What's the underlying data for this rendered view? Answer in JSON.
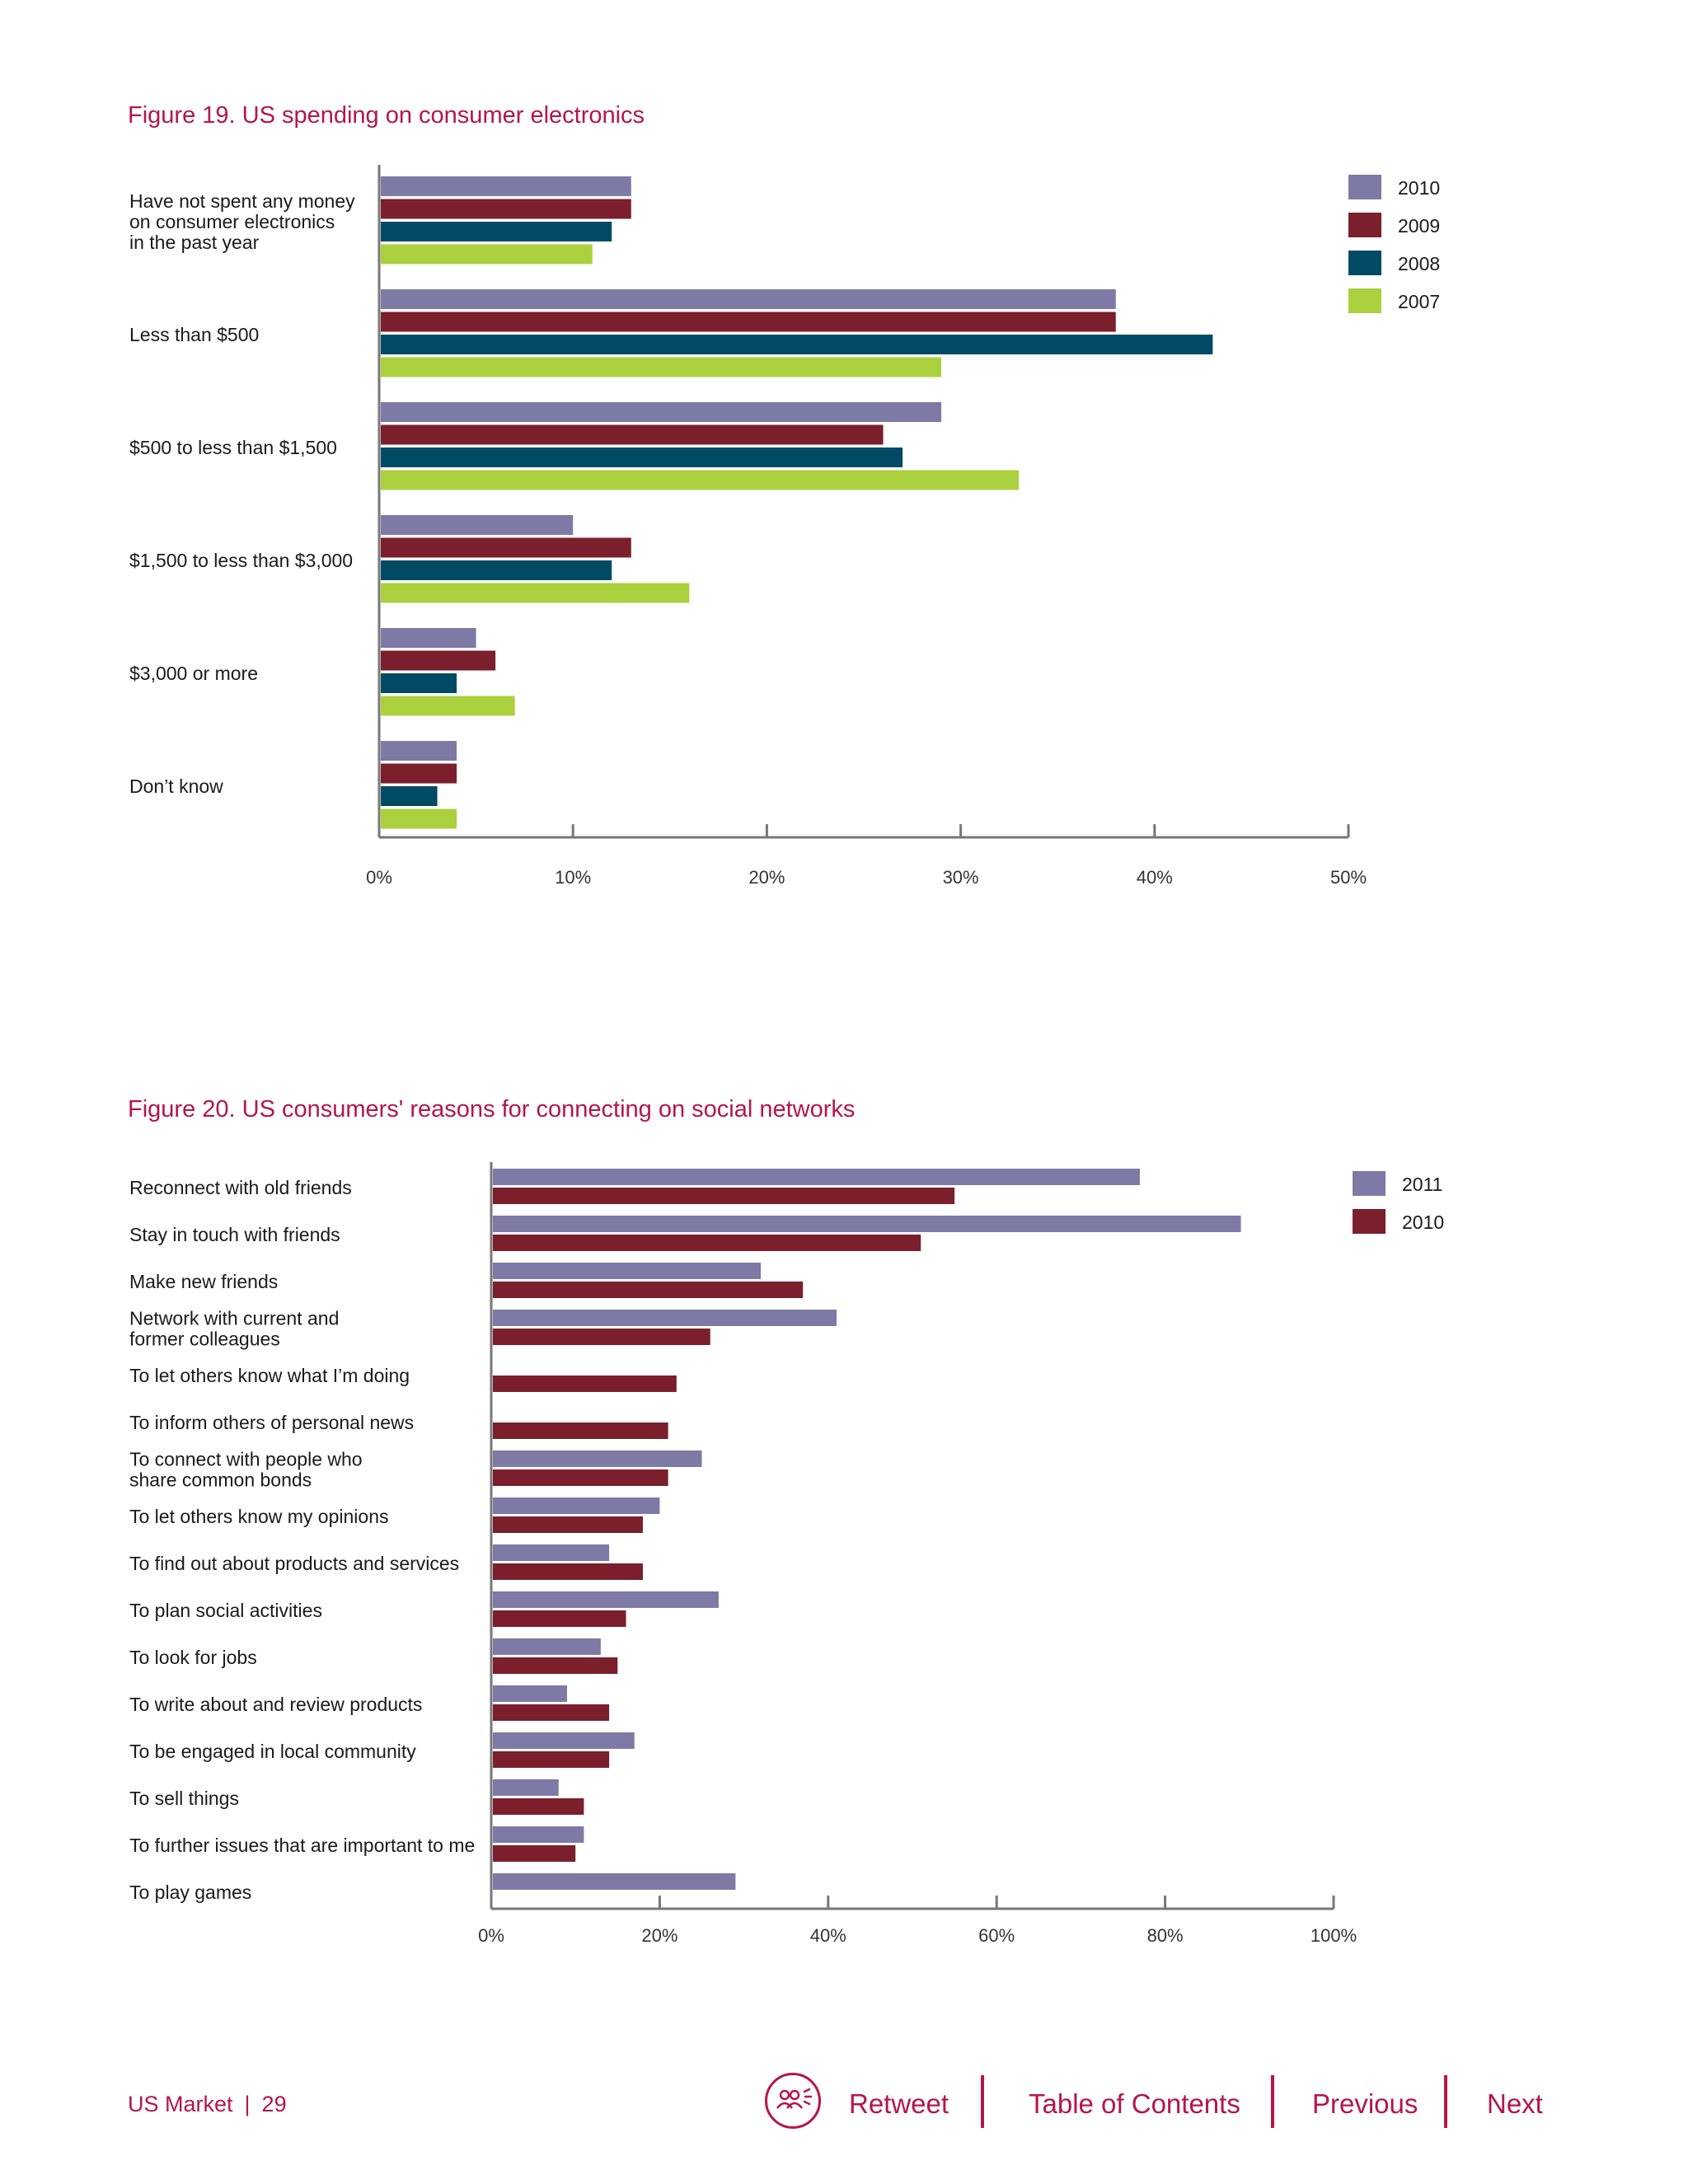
{
  "colors": {
    "title": "#b5154b",
    "axis": "#777777",
    "s2011": "#7e7aa6",
    "s2010": "#7e7aa6",
    "s2009": "#7a1f2b",
    "s2008": "#004b63",
    "s2007": "#abd03e",
    "s2010_fig20": "#7a1f2b"
  },
  "chart_data": [
    {
      "type": "bar",
      "orientation": "horizontal",
      "title": "Figure 19. US spending on consumer electronics",
      "categories": [
        [
          "Have not spent any money",
          "on consumer electronics",
          "in the past year"
        ],
        [
          "Less than $500"
        ],
        [
          "$500 to less than $1,500"
        ],
        [
          "$1,500 to less than $3,000"
        ],
        [
          "$3,000 or more"
        ],
        [
          "Don’t know"
        ]
      ],
      "series": [
        {
          "name": "2010",
          "color": "#7e7aa6",
          "values": [
            13,
            38,
            29,
            10,
            5,
            4
          ]
        },
        {
          "name": "2009",
          "color": "#7a1f2b",
          "values": [
            13,
            38,
            26,
            13,
            6,
            4
          ]
        },
        {
          "name": "2008",
          "color": "#004b63",
          "values": [
            12,
            43,
            27,
            12,
            4,
            3
          ]
        },
        {
          "name": "2007",
          "color": "#abd03e",
          "values": [
            11,
            29,
            33,
            16,
            7,
            4
          ]
        }
      ],
      "xlim": [
        0,
        50
      ],
      "xticks": [
        0,
        10,
        20,
        30,
        40,
        50
      ],
      "tick_labels": [
        "0%",
        "10%",
        "20%",
        "30%",
        "40%",
        "50%"
      ],
      "legend": "top-right",
      "grid": false
    },
    {
      "type": "bar",
      "orientation": "horizontal",
      "title": "Figure 20. US consumers' reasons for connecting on social networks",
      "categories": [
        [
          "Reconnect with old friends"
        ],
        [
          "Stay in touch with friends"
        ],
        [
          "Make new friends"
        ],
        [
          "Network with current and",
          "former colleagues"
        ],
        [
          "To let others know what I’m doing"
        ],
        [
          "To inform others of personal news"
        ],
        [
          "To connect with people who",
          "share common bonds"
        ],
        [
          "To let others know my opinions"
        ],
        [
          "To find out about products and services"
        ],
        [
          "To plan social activities"
        ],
        [
          "To look for jobs"
        ],
        [
          "To write about and review products"
        ],
        [
          "To be engaged in local community"
        ],
        [
          "To sell things"
        ],
        [
          "To further issues that are important to me"
        ],
        [
          "To play games"
        ]
      ],
      "series": [
        {
          "name": "2011",
          "color": "#7e7aa6",
          "values": [
            77,
            89,
            32,
            41,
            null,
            null,
            25,
            20,
            14,
            27,
            13,
            9,
            17,
            8,
            11,
            29
          ]
        },
        {
          "name": "2010",
          "color": "#7a1f2b",
          "values": [
            55,
            51,
            37,
            26,
            22,
            21,
            21,
            18,
            18,
            16,
            15,
            14,
            14,
            11,
            10,
            null
          ]
        }
      ],
      "xlim": [
        0,
        100
      ],
      "xticks": [
        0,
        20,
        40,
        60,
        80,
        100
      ],
      "tick_labels": [
        "0%",
        "20%",
        "40%",
        "60%",
        "80%",
        "100%"
      ],
      "legend": "top-right",
      "grid": false
    }
  ],
  "footer": {
    "section": "US Market",
    "separator": "|",
    "page": "29",
    "retweet_icon": "people-group-icon",
    "retweet": "Retweet",
    "toc": "Table of Contents",
    "previous": "Previous",
    "next": "Next"
  }
}
